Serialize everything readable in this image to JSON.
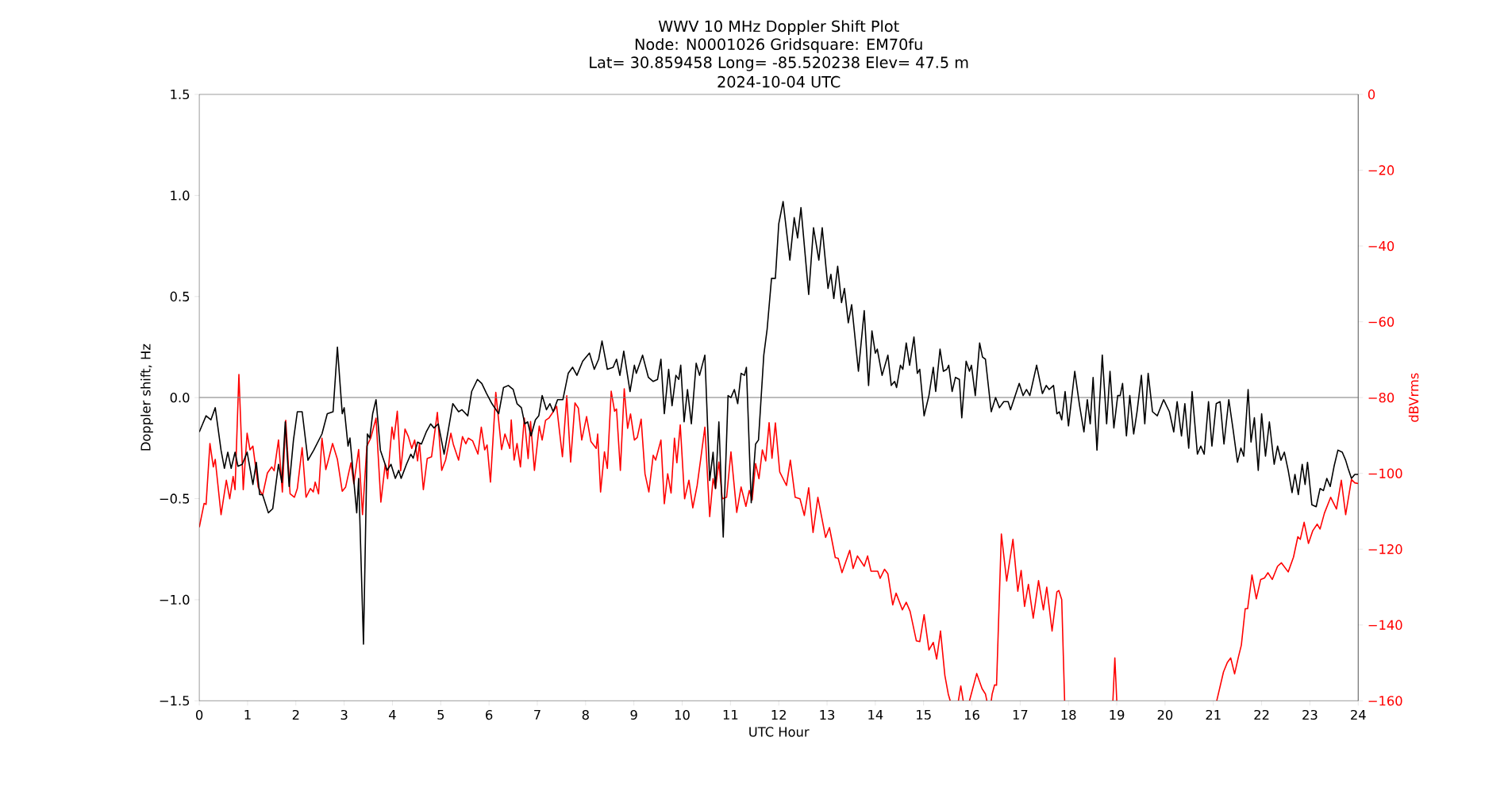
{
  "chart_data": {
    "type": "line",
    "title": "WWV 10 MHz Doppler Shift Plot",
    "subtitle": "Node:  N0001026     Gridsquare:  EM70fu",
    "annotations": [
      "Lat= 30.859458    Long= -85.520238    Elev= 47.5 m",
      "2024-10-04  UTC"
    ],
    "xlabel": "UTC Hour",
    "ylabel": "Doppler shift, Hz",
    "y2label": "dBVrms",
    "xlim": [
      0,
      24
    ],
    "xticks": [
      0,
      1,
      2,
      3,
      4,
      5,
      6,
      7,
      8,
      9,
      10,
      11,
      12,
      13,
      14,
      15,
      16,
      17,
      18,
      19,
      20,
      21,
      22,
      23,
      24
    ],
    "ylim": [
      -1.5,
      1.5
    ],
    "yticks": [
      {
        "value": -1.5,
        "label": "−1.5"
      },
      {
        "value": -1,
        "label": "−1.0"
      },
      {
        "value": -0.5,
        "label": "−0.5"
      },
      {
        "value": 0,
        "label": "0.0"
      },
      {
        "value": 0.5,
        "label": "0.5"
      },
      {
        "value": 1,
        "label": "1.0"
      },
      {
        "value": 1.5,
        "label": "1.5"
      }
    ],
    "y2lim": [
      -160,
      0
    ],
    "y2ticks": [
      {
        "value": -160,
        "label": "−160"
      },
      {
        "value": -140,
        "label": "−140"
      },
      {
        "value": -120,
        "label": "−120"
      },
      {
        "value": -100,
        "label": "−100"
      },
      {
        "value": -80,
        "label": "−80"
      },
      {
        "value": -60,
        "label": "−60"
      },
      {
        "value": -40,
        "label": "−40"
      },
      {
        "value": -20,
        "label": "−20"
      },
      0
    ],
    "ref_lines": [
      {
        "axis": "y",
        "value": 0,
        "color": "#808080"
      }
    ],
    "marker": "none",
    "line_style": "solid",
    "series": [
      {
        "color": "#000000",
        "x": [
          0.0,
          0.14,
          0.24,
          0.33,
          0.45,
          0.52,
          0.59,
          0.66,
          0.74,
          0.8,
          0.89,
          0.99,
          1.11,
          1.18,
          1.25,
          1.31,
          1.43,
          1.52,
          1.64,
          1.71,
          1.78,
          1.86,
          1.95,
          2.03,
          2.13,
          2.25,
          2.37,
          2.54,
          2.65,
          2.77,
          2.86,
          2.96,
          3.0,
          3.08,
          3.12,
          3.26,
          3.3,
          3.4,
          3.48,
          3.53,
          3.59,
          3.66,
          3.75,
          3.89,
          3.97,
          4.06,
          4.13,
          4.18,
          4.29,
          4.38,
          4.43,
          4.52,
          4.6,
          4.7,
          4.79,
          4.86,
          4.95,
          5.07,
          5.25,
          5.37,
          5.44,
          5.56,
          5.64,
          5.76,
          5.85,
          5.95,
          6.06,
          6.2,
          6.3,
          6.4,
          6.5,
          6.58,
          6.67,
          6.74,
          6.8,
          6.87,
          6.96,
          7.03,
          7.1,
          7.19,
          7.26,
          7.33,
          7.42,
          7.53,
          7.64,
          7.73,
          7.82,
          7.94,
          8.08,
          8.18,
          8.27,
          8.34,
          8.45,
          8.57,
          8.64,
          8.71,
          8.79,
          8.92,
          9.01,
          9.05,
          9.18,
          9.3,
          9.4,
          9.49,
          9.56,
          9.63,
          9.72,
          9.79,
          9.87,
          9.93,
          9.97,
          10.04,
          10.11,
          10.19,
          10.29,
          10.36,
          10.47,
          10.57,
          10.64,
          10.69,
          10.76,
          10.85,
          10.95,
          11.01,
          11.08,
          11.15,
          11.22,
          11.29,
          11.33,
          11.43,
          11.52,
          11.58,
          11.69,
          11.76,
          11.85,
          11.93,
          12.0,
          12.09,
          12.23,
          12.32,
          12.39,
          12.46,
          12.62,
          12.72,
          12.83,
          12.9,
          13.02,
          13.08,
          13.14,
          13.22,
          13.3,
          13.36,
          13.44,
          13.51,
          13.65,
          13.77,
          13.86,
          13.93,
          14.0,
          14.04,
          14.14,
          14.26,
          14.33,
          14.4,
          14.44,
          14.52,
          14.57,
          14.64,
          14.71,
          14.8,
          14.87,
          14.92,
          15.01,
          15.11,
          15.2,
          15.25,
          15.34,
          15.41,
          15.48,
          15.52,
          15.59,
          15.66,
          15.74,
          15.79,
          15.88,
          15.95,
          15.99,
          16.07,
          16.16,
          16.22,
          16.28,
          16.4,
          16.49,
          16.57,
          16.66,
          16.75,
          16.8,
          16.98,
          17.06,
          17.13,
          17.2,
          17.34,
          17.46,
          17.54,
          17.6,
          17.69,
          17.76,
          17.81,
          17.86,
          17.93,
          18.0,
          18.13,
          18.23,
          18.32,
          18.39,
          18.45,
          18.51,
          18.59,
          18.7,
          18.79,
          18.86,
          18.94,
          19.02,
          19.07,
          19.12,
          19.2,
          19.27,
          19.35,
          19.42,
          19.51,
          19.58,
          19.65,
          19.74,
          19.84,
          19.97,
          20.09,
          20.18,
          20.25,
          20.34,
          20.41,
          20.49,
          20.56,
          20.67,
          20.74,
          20.81,
          20.9,
          20.97,
          21.06,
          21.14,
          21.22,
          21.32,
          21.41,
          21.5,
          21.57,
          21.63,
          21.72,
          21.78,
          21.85,
          21.93,
          22.0,
          22.08,
          22.16,
          22.26,
          22.33,
          22.4,
          22.47,
          22.55,
          22.63,
          22.69,
          22.76,
          22.84,
          22.9,
          22.95,
          23.04,
          23.13,
          23.21,
          23.28,
          23.35,
          23.42,
          23.5,
          23.58,
          23.67,
          23.74,
          23.79,
          23.86,
          23.93,
          24.0
        ],
        "values": [
          -0.17,
          -0.09,
          -0.11,
          -0.05,
          -0.26,
          -0.35,
          -0.27,
          -0.35,
          -0.27,
          -0.34,
          -0.33,
          -0.27,
          -0.43,
          -0.32,
          -0.48,
          -0.48,
          -0.57,
          -0.55,
          -0.33,
          -0.42,
          -0.12,
          -0.44,
          -0.21,
          -0.07,
          -0.07,
          -0.31,
          -0.26,
          -0.18,
          -0.08,
          -0.07,
          0.25,
          -0.08,
          -0.05,
          -0.24,
          -0.2,
          -0.57,
          -0.4,
          -1.22,
          -0.18,
          -0.2,
          -0.08,
          -0.01,
          -0.26,
          -0.36,
          -0.33,
          -0.4,
          -0.36,
          -0.4,
          -0.33,
          -0.28,
          -0.3,
          -0.22,
          -0.23,
          -0.17,
          -0.13,
          -0.15,
          -0.13,
          -0.28,
          -0.03,
          -0.07,
          -0.06,
          -0.09,
          0.03,
          0.09,
          0.07,
          0.02,
          -0.03,
          -0.08,
          0.05,
          0.06,
          0.04,
          -0.03,
          -0.05,
          -0.13,
          -0.12,
          -0.19,
          -0.11,
          -0.09,
          0.01,
          -0.06,
          -0.03,
          -0.07,
          -0.01,
          -0.01,
          0.12,
          0.15,
          0.11,
          0.18,
          0.22,
          0.14,
          0.19,
          0.28,
          0.14,
          0.15,
          0.19,
          0.11,
          0.23,
          0.03,
          0.16,
          0.12,
          0.21,
          0.1,
          0.08,
          0.09,
          0.19,
          -0.08,
          0.14,
          -0.04,
          0.11,
          0.09,
          0.16,
          -0.12,
          0.04,
          -0.13,
          0.17,
          0.11,
          0.21,
          -0.41,
          -0.27,
          -0.45,
          -0.12,
          -0.69,
          0.01,
          0.0,
          0.04,
          -0.03,
          0.12,
          0.11,
          0.15,
          -0.52,
          -0.23,
          -0.21,
          0.21,
          0.34,
          0.59,
          0.59,
          0.86,
          0.97,
          0.68,
          0.89,
          0.79,
          0.94,
          0.51,
          0.84,
          0.68,
          0.84,
          0.54,
          0.61,
          0.49,
          0.65,
          0.47,
          0.54,
          0.37,
          0.46,
          0.13,
          0.43,
          0.06,
          0.33,
          0.22,
          0.24,
          0.11,
          0.21,
          0.06,
          0.08,
          0.05,
          0.16,
          0.14,
          0.27,
          0.16,
          0.3,
          0.12,
          0.14,
          -0.09,
          0.01,
          0.15,
          0.03,
          0.24,
          0.13,
          0.14,
          0.16,
          0.03,
          0.1,
          0.09,
          -0.1,
          0.18,
          0.13,
          0.16,
          0.01,
          0.27,
          0.2,
          0.19,
          -0.07,
          0.0,
          -0.05,
          -0.02,
          -0.02,
          -0.06,
          0.07,
          0.01,
          0.04,
          0.01,
          0.16,
          0.02,
          0.06,
          0.04,
          0.06,
          -0.08,
          -0.07,
          -0.11,
          0.03,
          -0.14,
          0.13,
          -0.04,
          -0.17,
          -0.01,
          -0.13,
          0.1,
          -0.26,
          0.21,
          -0.13,
          0.13,
          -0.15,
          0.01,
          0.01,
          0.07,
          -0.19,
          0.01,
          -0.18,
          -0.07,
          0.11,
          -0.13,
          0.12,
          -0.07,
          -0.09,
          -0.01,
          -0.07,
          -0.17,
          -0.02,
          -0.19,
          -0.03,
          -0.25,
          0.03,
          -0.28,
          -0.24,
          -0.28,
          -0.02,
          -0.24,
          -0.03,
          -0.02,
          -0.23,
          -0.01,
          -0.16,
          -0.32,
          -0.25,
          -0.29,
          0.04,
          -0.22,
          -0.1,
          -0.36,
          -0.08,
          -0.29,
          -0.12,
          -0.33,
          -0.24,
          -0.31,
          -0.27,
          -0.36,
          -0.47,
          -0.38,
          -0.48,
          -0.33,
          -0.43,
          -0.32,
          -0.53,
          -0.54,
          -0.45,
          -0.46,
          -0.4,
          -0.44,
          -0.34,
          -0.26,
          -0.27,
          -0.31,
          -0.35,
          -0.4,
          -0.38,
          -0.38
        ]
      },
      {
        "color": "#ff0000",
        "axis": "y2",
        "x": [
          0.0,
          0.1,
          0.14,
          0.22,
          0.29,
          0.33,
          0.45,
          0.56,
          0.63,
          0.7,
          0.74,
          0.82,
          0.91,
          0.99,
          1.05,
          1.11,
          1.22,
          1.31,
          1.41,
          1.5,
          1.55,
          1.64,
          1.72,
          1.79,
          1.88,
          1.97,
          2.03,
          2.13,
          2.21,
          2.3,
          2.36,
          2.4,
          2.47,
          2.54,
          2.62,
          2.68,
          2.76,
          2.86,
          2.96,
          3.03,
          3.14,
          3.2,
          3.3,
          3.38,
          3.47,
          3.55,
          3.66,
          3.76,
          3.85,
          3.9,
          3.99,
          4.03,
          4.1,
          4.17,
          4.26,
          4.33,
          4.4,
          4.46,
          4.52,
          4.56,
          4.64,
          4.72,
          4.81,
          4.93,
          5.02,
          5.1,
          5.21,
          5.26,
          5.37,
          5.45,
          5.52,
          5.57,
          5.66,
          5.77,
          5.84,
          5.91,
          5.96,
          6.03,
          6.14,
          6.26,
          6.33,
          6.43,
          6.46,
          6.52,
          6.58,
          6.65,
          6.73,
          6.81,
          6.86,
          6.94,
          7.04,
          7.1,
          7.17,
          7.24,
          7.31,
          7.4,
          7.52,
          7.61,
          7.69,
          7.78,
          7.85,
          7.92,
          8.02,
          8.11,
          8.22,
          8.25,
          8.31,
          8.39,
          8.45,
          8.53,
          8.6,
          8.64,
          8.72,
          8.8,
          8.87,
          8.93,
          9.01,
          9.07,
          9.15,
          9.23,
          9.31,
          9.4,
          9.45,
          9.56,
          9.63,
          9.7,
          9.77,
          9.84,
          9.89,
          9.96,
          10.05,
          10.14,
          10.22,
          10.31,
          10.39,
          10.47,
          10.57,
          10.64,
          10.69,
          10.76,
          10.83,
          10.92,
          11.01,
          11.13,
          11.22,
          11.32,
          11.39,
          11.45,
          11.52,
          11.59,
          11.66,
          11.73,
          11.8,
          11.86,
          11.93,
          12.02,
          12.16,
          12.24,
          12.34,
          12.44,
          12.53,
          12.62,
          12.71,
          12.81,
          12.97,
          13.05,
          13.17,
          13.23,
          13.31,
          13.47,
          13.54,
          13.63,
          13.77,
          13.84,
          13.91,
          14.05,
          14.1,
          14.19,
          14.26,
          14.36,
          14.43,
          14.56,
          14.64,
          14.72,
          14.85,
          14.92,
          15.01,
          15.11,
          15.2,
          15.27,
          15.35,
          15.44,
          15.51,
          15.55,
          15.63,
          15.72,
          15.77,
          15.82,
          15.88,
          15.95,
          16.1,
          16.21,
          16.28,
          16.31,
          16.35,
          16.4,
          16.42,
          16.47,
          16.51,
          16.61,
          16.72,
          16.85,
          16.95,
          17.02,
          17.09,
          17.17,
          17.27,
          17.38,
          17.48,
          17.55,
          17.66,
          17.76,
          17.8,
          17.86,
          17.92,
          18.4,
          18.92,
          18.96,
          19.0,
          20.0,
          21.07,
          21.21,
          21.29,
          21.36,
          21.44,
          21.52,
          21.58,
          21.66,
          21.71,
          21.8,
          21.89,
          21.98,
          22.06,
          22.13,
          22.22,
          22.33,
          22.41,
          22.55,
          22.66,
          22.75,
          22.8,
          22.88,
          22.97,
          23.06,
          23.15,
          23.21,
          23.3,
          23.43,
          23.55,
          23.65,
          23.74,
          23.86,
          23.93,
          24.0
        ],
        "values": [
          -114.2,
          -107.9,
          -108.2,
          -92.1,
          -98.3,
          -96.3,
          -110.9,
          -101.8,
          -106.7,
          -100.8,
          -104.3,
          -73.9,
          -104.3,
          -89.4,
          -93.8,
          -92.8,
          -103.6,
          -105.8,
          -99.9,
          -98.3,
          -99.3,
          -91.2,
          -104.9,
          -86.0,
          -105.4,
          -106.3,
          -104.0,
          -93.2,
          -106.3,
          -104.0,
          -104.9,
          -102.3,
          -105.4,
          -90.7,
          -99.0,
          -96.1,
          -92.1,
          -96.3,
          -104.7,
          -103.6,
          -97.2,
          -102.7,
          -93.7,
          -110.9,
          -92.8,
          -90.7,
          -85.4,
          -107.6,
          -97.6,
          -101.4,
          -87.8,
          -91.0,
          -83.6,
          -99.3,
          -88.3,
          -90.3,
          -93.4,
          -91.2,
          -96.7,
          -92.1,
          -104.3,
          -96.1,
          -95.6,
          -83.9,
          -99.2,
          -96.5,
          -89.4,
          -92.3,
          -96.5,
          -90.3,
          -92.2,
          -90.7,
          -91.4,
          -94.9,
          -87.8,
          -93.8,
          -92.5,
          -102.3,
          -78.6,
          -93.7,
          -89.6,
          -93.4,
          -85.9,
          -96.5,
          -92.1,
          -98.3,
          -85.4,
          -96.1,
          -86.3,
          -99.2,
          -87.5,
          -91.2,
          -86.0,
          -85.4,
          -84.1,
          -82.3,
          -95.6,
          -79.5,
          -97.0,
          -81.4,
          -82.8,
          -91.2,
          -85.0,
          -91.6,
          -93.4,
          -89.6,
          -104.9,
          -94.3,
          -98.7,
          -78.3,
          -83.6,
          -83.0,
          -99.2,
          -77.7,
          -88.1,
          -84.3,
          -91.2,
          -90.5,
          -85.7,
          -100.1,
          -104.9,
          -95.2,
          -96.5,
          -91.2,
          -108.0,
          -100.1,
          -105.2,
          -90.7,
          -97.2,
          -87.2,
          -106.7,
          -101.8,
          -109.1,
          -103.2,
          -95.6,
          -87.8,
          -111.4,
          -101.4,
          -104.0,
          -97.0,
          -106.7,
          -106.3,
          -94.3,
          -110.3,
          -103.6,
          -108.7,
          -104.5,
          -107.0,
          -97.4,
          -101.4,
          -93.8,
          -96.7,
          -86.6,
          -96.0,
          -86.7,
          -99.6,
          -103.2,
          -96.5,
          -106.3,
          -106.7,
          -111.1,
          -103.8,
          -115.6,
          -106.3,
          -116.9,
          -114.3,
          -122.2,
          -122.4,
          -126.2,
          -120.3,
          -125.1,
          -121.8,
          -124.5,
          -121.8,
          -125.8,
          -125.8,
          -127.7,
          -125.3,
          -126.5,
          -134.7,
          -131.6,
          -136.0,
          -134.0,
          -136.4,
          -144.2,
          -144.4,
          -137.3,
          -146.6,
          -144.6,
          -149.0,
          -141.6,
          -153.3,
          -158.2,
          -160,
          null,
          -160,
          -156.1,
          -160,
          null,
          -160,
          -152.8,
          -156.8,
          -158.2,
          -160,
          null,
          -160,
          -158.2,
          -155.8,
          -155.9,
          -116.0,
          -128.4,
          -117.4,
          -131.1,
          -125.6,
          -135.1,
          -129.3,
          -138.2,
          -128.3,
          -136.0,
          -130.0,
          -141.6,
          -131.3,
          -130.9,
          -133.3,
          -160,
          null,
          -160,
          -148.7,
          -160,
          null,
          -160,
          -152.4,
          -149.9,
          -148.7,
          -152.9,
          -148.4,
          -145.3,
          -135.7,
          -135.7,
          -126.8,
          -133.1,
          -128.0,
          -127.6,
          -126.2,
          -128.0,
          -124.5,
          -123.6,
          -126.0,
          -122.1,
          -116.7,
          -117.4,
          -112.9,
          -118.5,
          -115.1,
          -113.4,
          -114.7,
          -110.5,
          -106.3,
          -109.4,
          -101.8,
          -110.9,
          -101.6,
          -102.5,
          -102.7
        ]
      }
    ]
  }
}
